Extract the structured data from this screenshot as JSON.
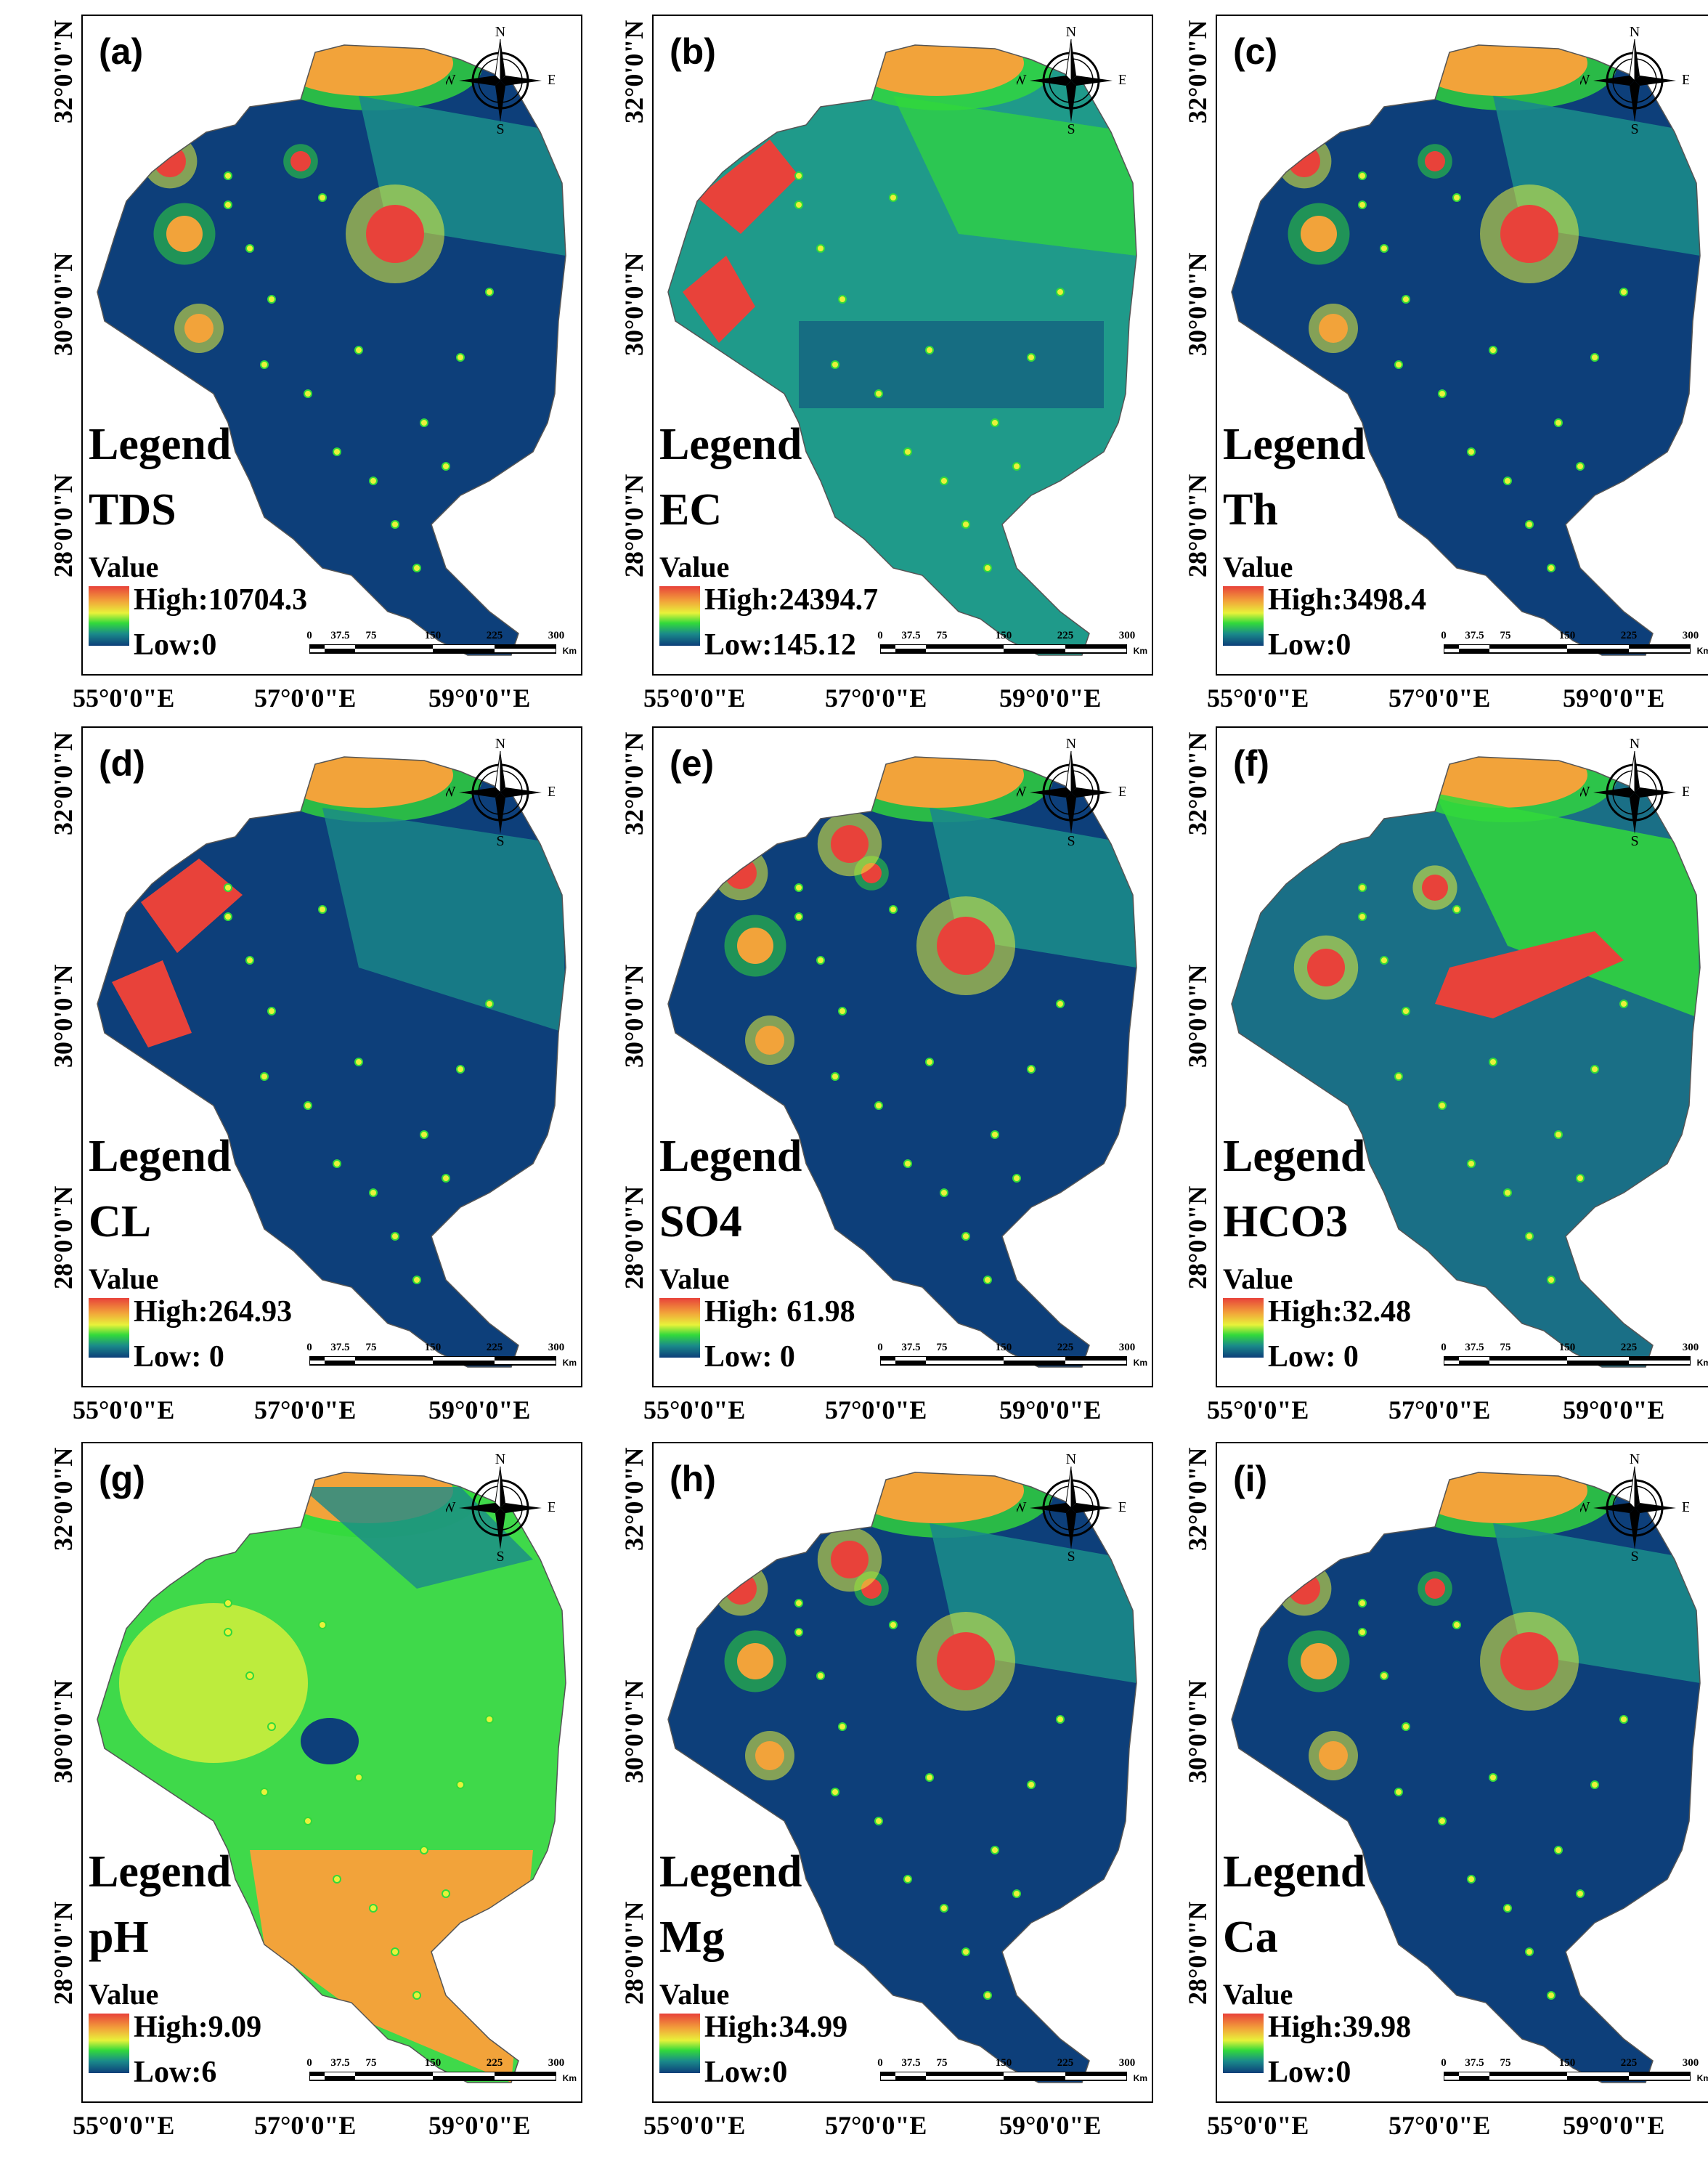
{
  "y_ticks": [
    "32°0'0\"N",
    "30°0'0\"N",
    "28°0'0\"N"
  ],
  "x_ticks": [
    "55°0'0\"E",
    "57°0'0\"E",
    "59°0'0\"E"
  ],
  "compass": {
    "n": "N",
    "s": "S",
    "e": "E",
    "w": "W"
  },
  "scale_bar": {
    "ticks": [
      "0",
      "37.5",
      "75",
      "150",
      "225",
      "300"
    ],
    "unit": "Km"
  },
  "legend_title": "Legend",
  "legend_value_label": "Value",
  "ramp_colors": [
    "#e8423a",
    "#f2a33a",
    "#e8f23a",
    "#32d93b",
    "#1a8a8a",
    "#0d3f7a"
  ],
  "panels": [
    {
      "label": "(a)",
      "variable": "TDS",
      "high": "High:10704.3",
      "low": "Low:0",
      "scheme": "hot-north-east"
    },
    {
      "label": "(b)",
      "variable": "EC",
      "high": "High:24394.7",
      "low": "Low:145.12",
      "scheme": "teal-west-hot"
    },
    {
      "label": "(c)",
      "variable": "Th",
      "high": "High:3498.4",
      "low": "Low:0",
      "scheme": "hot-north-east"
    },
    {
      "label": "(d)",
      "variable": "CL",
      "high": "High:264.93",
      "low": "Low: 0",
      "scheme": "west-hot-teal-east"
    },
    {
      "label": "(e)",
      "variable": "SO4",
      "high": "High: 61.98",
      "low": "Low: 0",
      "scheme": "dark-spots"
    },
    {
      "label": "(f)",
      "variable": "HCO3",
      "high": "High:32.48",
      "low": "Low: 0",
      "scheme": "center-hot-green"
    },
    {
      "label": "(g)",
      "variable": "pH",
      "high": "High:9.09",
      "low": "Low:6",
      "scheme": "green-yellow-south-hot"
    },
    {
      "label": "(h)",
      "variable": "Mg",
      "high": "High:34.99",
      "low": "Low:0",
      "scheme": "dark-spots"
    },
    {
      "label": "(i)",
      "variable": "Ca",
      "high": "High:39.98",
      "low": "Low:0",
      "scheme": "hot-north-east"
    }
  ]
}
